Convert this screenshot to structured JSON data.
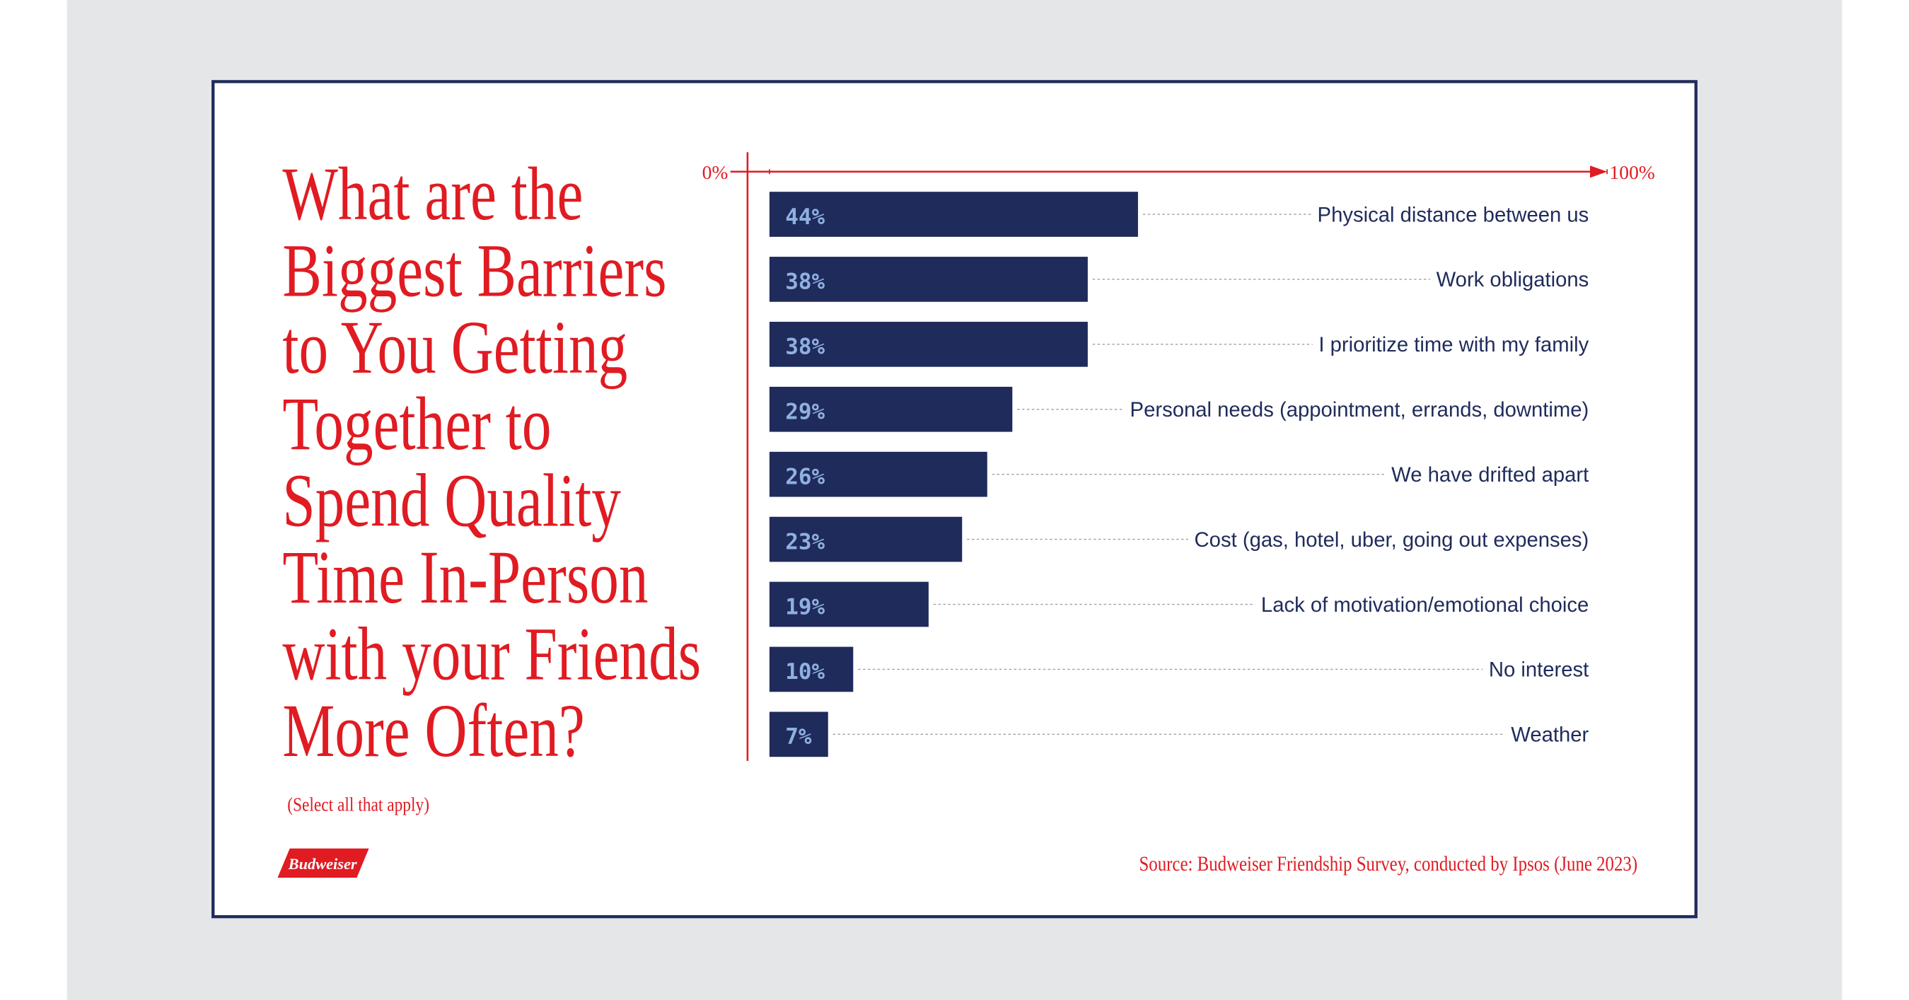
{
  "chart_data": {
    "type": "bar",
    "orientation": "horizontal",
    "title_lines": [
      "What are the",
      "Biggest Barriers",
      "to You Getting",
      "Together to",
      "Spend Quality",
      "Time In-Person",
      "with your Friends",
      "More Often?"
    ],
    "subtitle": "(Select all that apply)",
    "source": "Source: Budweiser Friendship Survey, conducted by Ipsos (June 2023)",
    "logo": "Budweiser",
    "categories": [
      "Physical distance between us",
      "Work obligations",
      "I prioritize time with my family",
      "Personal needs (appointment, errands, downtime)",
      "We have drifted apart",
      "Cost (gas, hotel, uber, going out expenses)",
      "Lack of motivation/emotional choice",
      "No interest",
      "Weather"
    ],
    "values": [
      44,
      38,
      38,
      29,
      26,
      23,
      19,
      10,
      7
    ],
    "value_labels": [
      "44%",
      "38%",
      "38%",
      "29%",
      "26%",
      "23%",
      "19%",
      "10%",
      "7%"
    ],
    "color": "#1f2b5b",
    "xlim": [
      0,
      100
    ],
    "xticks": [
      {
        "value": 0,
        "label": "0%"
      },
      {
        "value": 100,
        "label": "100%"
      }
    ]
  }
}
